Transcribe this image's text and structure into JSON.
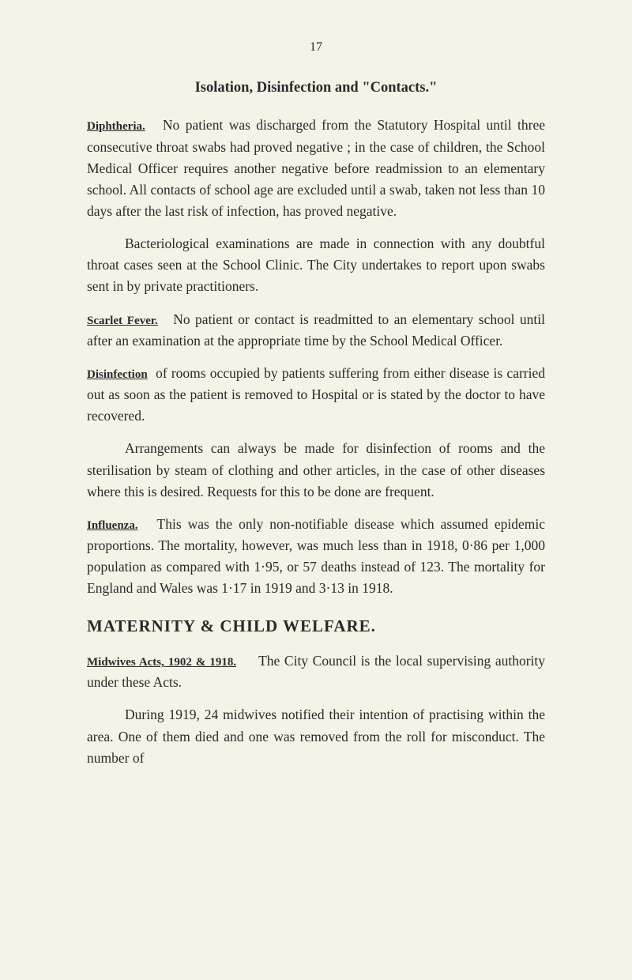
{
  "page_number": "17",
  "section_title": "Isolation, Disinfection and \"Contacts.\"",
  "diphtheria": {
    "head": "Diphtheria.",
    "p1": "No patient was discharged from the Statutory Hospital until three consecutive throat swabs had proved negative ; in the case of children, the School Medical Officer requires another negative before readmission to an elementary school. All contacts of school age are excluded until a swab, taken not less than 10 days after the last risk of infection, has proved negative.",
    "p2": "Bacteriological examinations are made in connection with any doubtful throat cases seen at the School Clinic. The City undertakes to report upon swabs sent in by private practitioners."
  },
  "scarlet": {
    "head": "Scarlet Fever.",
    "p1": "No patient or contact is readmitted to an elementary school until after an examination at the appropriate time by the School Medical Officer."
  },
  "disinfection": {
    "head": "Disinfection",
    "p1": "of rooms occupied by patients suffering from either disease is carried out as soon as the patient is removed to Hospital or is stated by the doctor to have recovered.",
    "p2": "Arrangements can always be made for disinfection of rooms and the sterilisation by steam of clothing and other articles, in the case of other diseases where this is desired. Requests for this to be done are frequent."
  },
  "influenza": {
    "head": "Influenza.",
    "p1": "This was the only non-notifiable disease which assumed epidemic proportions. The mortality, however, was much less than in 1918, 0·86 per 1,000 population as compared with 1·95, or 57 deaths instead of 123. The mortality for England and Wales was 1·17 in 1919 and 3·13 in 1918."
  },
  "maternity": {
    "heading": "MATERNITY & CHILD WELFARE.",
    "midwives_head": "Midwives Acts, 1902 & 1918.",
    "p1": "The City Council is the local supervising authority under these Acts.",
    "p2": "During 1919, 24 midwives notified their intention of practising within the area. One of them died and one was removed from the roll for misconduct. The number of"
  }
}
